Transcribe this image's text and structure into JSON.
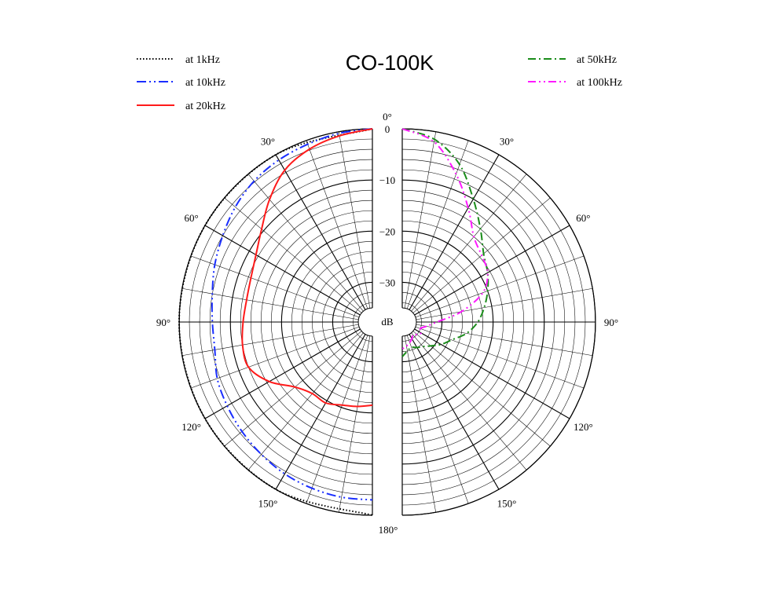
{
  "chart_data": {
    "type": "polar",
    "title": "CO-100K",
    "center_label": "dB",
    "radial_ticks": [
      "0",
      "−10",
      "−20",
      "−30"
    ],
    "radial_range_db": [
      -35,
      0
    ],
    "angle_top_label": "0°",
    "angle_bottom_label": "180°",
    "left_angle_labels": [
      "30°",
      "60°",
      "90°",
      "120°",
      "150°"
    ],
    "right_angle_labels": [
      "30°",
      "60°",
      "90°",
      "120°",
      "150°"
    ],
    "left_series": [
      {
        "name": "at 1kHz",
        "color": "#000000",
        "dash": "1.5,2.5",
        "angles": [
          0,
          30,
          60,
          90,
          120,
          150,
          180
        ],
        "values": [
          0,
          0,
          0,
          0,
          0,
          0,
          0
        ]
      },
      {
        "name": "at 10kHz",
        "color": "#1a2eff",
        "dash": "12,4,2,4,2,4",
        "angles": [
          0,
          10,
          20,
          30,
          40,
          50,
          60,
          70,
          80,
          90,
          100,
          110,
          120,
          130,
          140,
          150,
          160,
          170,
          180
        ],
        "values": [
          0,
          -0.3,
          -0.8,
          -1.2,
          -1.8,
          -2.8,
          -4,
          -5,
          -6,
          -6.5,
          -6.5,
          -5.5,
          -5,
          -4.5,
          -4,
          -3.5,
          -3.2,
          -3,
          -3
        ]
      },
      {
        "name": "at 20kHz",
        "color": "#ff1a1a",
        "dash": "",
        "angles": [
          0,
          10,
          20,
          30,
          40,
          50,
          60,
          70,
          80,
          90,
          100,
          110,
          120,
          130,
          140,
          150,
          160,
          170,
          180
        ],
        "values": [
          0,
          -0.8,
          -1.8,
          -3.5,
          -6.5,
          -9.5,
          -11.5,
          -12.5,
          -12.8,
          -12.5,
          -12,
          -12,
          -14.5,
          -18,
          -19.5,
          -19.5,
          -20.5,
          -21,
          -21.5
        ]
      }
    ],
    "right_series": [
      {
        "name": "at 50kHz",
        "color": "#1a8c1a",
        "dash": "10,4,2,4",
        "angles": [
          0,
          10,
          20,
          30,
          40,
          50,
          60,
          70,
          80,
          90,
          100,
          110,
          120,
          130,
          140,
          150,
          160,
          170,
          180
        ],
        "values": [
          0,
          -1.5,
          -5,
          -10,
          -14,
          -17,
          -18.5,
          -20,
          -21.5,
          -23,
          -25,
          -27.5,
          -29,
          -30.5,
          -31.5,
          -32,
          -32.5,
          -32,
          -31
        ]
      },
      {
        "name": "at 100kHz",
        "color": "#ff1aff",
        "dash": "10,4,2,4,2,4",
        "angles": [
          0,
          10,
          20,
          30,
          40,
          50,
          60,
          70,
          80,
          90,
          100,
          110,
          120,
          130,
          140,
          150,
          160,
          170,
          180
        ],
        "values": [
          0,
          -2,
          -7,
          -12,
          -16,
          -17.5,
          -18.5,
          -21,
          -26,
          -31,
          -33,
          -34,
          -33.5,
          -34,
          -34.5,
          -34,
          -33.5,
          -33,
          -32.5
        ]
      }
    ],
    "legend_left_placement": "top-left",
    "legend_right_placement": "top-right",
    "grid": true
  }
}
